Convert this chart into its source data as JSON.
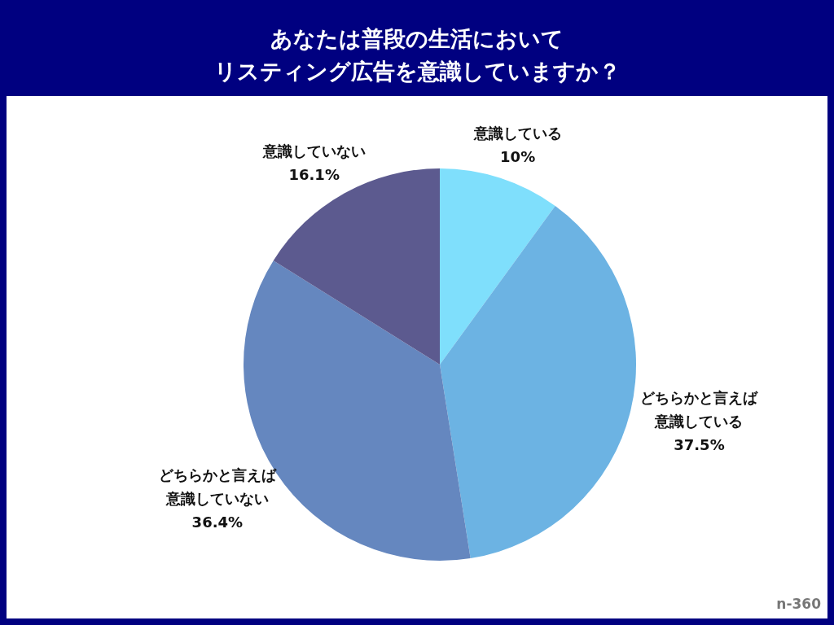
{
  "chart_data": {
    "type": "pie",
    "title": "あなたは普段の生活においてリスティング広告を意識していますか？",
    "categories": [
      "意識している",
      "どちらかと言えば意識している",
      "どちらかと言えば意識していない",
      "意識していない"
    ],
    "values": [
      10,
      37.5,
      36.4,
      16.1
    ],
    "value_labels": [
      "10%",
      "37.5%",
      "36.4%",
      "16.1%"
    ],
    "colors": [
      "#7fdffc",
      "#6cb3e3",
      "#6587bf",
      "#5c5a8f"
    ],
    "annotations": [
      "n-360"
    ]
  }
}
